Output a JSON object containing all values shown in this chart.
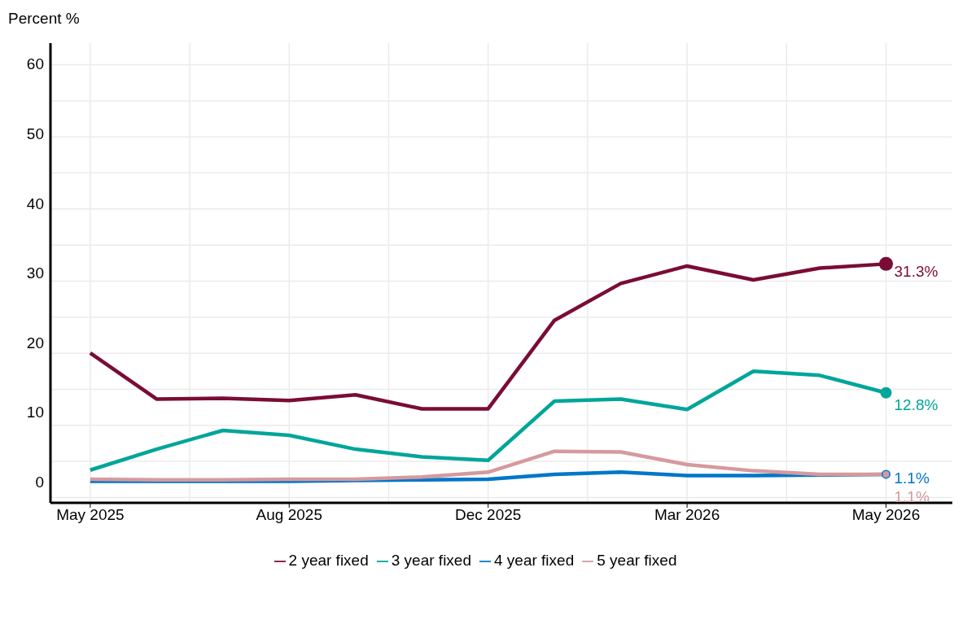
{
  "chart_data": {
    "type": "line",
    "ylabel": "Percent %",
    "categories": [
      "May 2025",
      null,
      null,
      "Aug 2025",
      null,
      null,
      "Dec 2025",
      null,
      null,
      "Mar 2026",
      null,
      null,
      "May 2026"
    ],
    "series": [
      {
        "name": "2 year fixed",
        "color": "#7a0c35",
        "values": [
          18.5,
          11.9,
          12.0,
          11.7,
          12.5,
          10.5,
          10.5,
          23.2,
          28.5,
          31.0,
          29.0,
          30.7,
          31.3
        ]
      },
      {
        "name": "3 year fixed",
        "color": "#00a59a",
        "values": [
          1.7,
          4.7,
          7.4,
          6.7,
          4.7,
          3.6,
          3.1,
          11.6,
          11.9,
          10.4,
          15.9,
          15.3,
          12.8
        ]
      },
      {
        "name": "4 year fixed",
        "color": "#0077c8",
        "values": [
          0.1,
          0.1,
          0.1,
          0.1,
          0.2,
          0.3,
          0.4,
          1.1,
          1.4,
          0.9,
          0.9,
          1.0,
          1.1
        ]
      },
      {
        "name": "5 year fixed",
        "color": "#d59a9e",
        "values": [
          0.4,
          0.3,
          0.3,
          0.4,
          0.4,
          0.7,
          1.4,
          4.4,
          4.3,
          2.5,
          1.6,
          1.1,
          1.1
        ]
      }
    ],
    "annotations": [
      {
        "text": "31.3%",
        "x": "May 2026",
        "y": 31.3
      },
      {
        "text": "12.8%",
        "x": "May 2026",
        "y": 12.8
      },
      {
        "text": "1.1%",
        "x": "May 2026",
        "y": 1.1
      },
      {
        "text": "1.1%",
        "x": "May 2026",
        "y": 1.1
      }
    ],
    "ylim": [
      -3,
      63
    ],
    "yticks": [
      0,
      10,
      20,
      30,
      40,
      50,
      60
    ],
    "grid": true,
    "legend": "bottom",
    "line_style": "solid"
  }
}
